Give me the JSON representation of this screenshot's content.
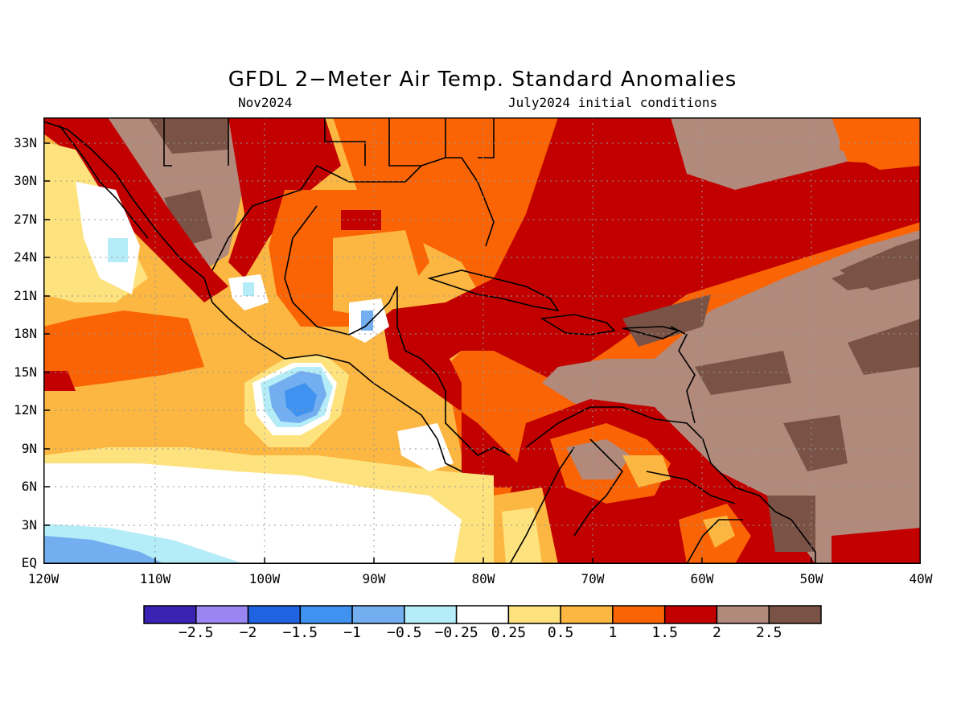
{
  "title": "GFDL 2−Meter Air Temp. Standard Anomalies",
  "subtitle_left": "Nov2024",
  "subtitle_right": "July2024 initial conditions",
  "map": {
    "lon_range": [
      -120,
      -40
    ],
    "lat_range": [
      0,
      35
    ],
    "grid": true,
    "lat_ticks": [
      "33N",
      "30N",
      "27N",
      "24N",
      "21N",
      "18N",
      "15N",
      "12N",
      "9N",
      "6N",
      "3N",
      "EQ"
    ],
    "lon_ticks": [
      "120W",
      "110W",
      "100W",
      "90W",
      "80W",
      "70W",
      "60W",
      "50W",
      "40W"
    ]
  },
  "legend": {
    "colors": [
      "#3a22b5",
      "#9a86f2",
      "#1f63e0",
      "#3f92f0",
      "#73aef0",
      "#b4ecf7",
      "#ffffff",
      "#fde27e",
      "#fbb741",
      "#fa6405",
      "#c20000",
      "#b18a7c",
      "#7a5346"
    ],
    "labels": [
      "−2.5",
      "−2",
      "−1.5",
      "−1",
      "−0.5",
      "−0.25",
      "0.25",
      "0.5",
      "1",
      "1.5",
      "2",
      "2.5"
    ]
  }
}
